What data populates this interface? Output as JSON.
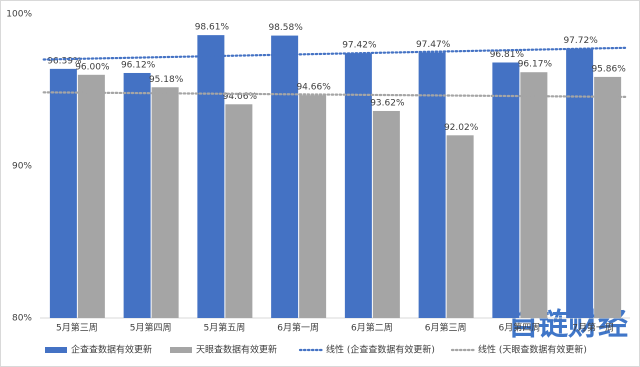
{
  "chart_data": {
    "type": "bar",
    "categories": [
      "5月第三周",
      "5月第四周",
      "5月第五周",
      "6月第一周",
      "6月第二周",
      "6月第三周",
      "6月第四周",
      "7月第一周"
    ],
    "series": [
      {
        "name": "企查查数据有效更新",
        "color": "#4472c4",
        "values": [
          96.39,
          96.12,
          98.61,
          98.58,
          97.42,
          97.47,
          96.81,
          97.72
        ],
        "value_labels": [
          "96.39%",
          "96.12%",
          "98.61%",
          "98.58%",
          "97.42%",
          "97.47%",
          "96.81%",
          "97.72%"
        ],
        "trendline": {
          "name": "线性 (企查查数据有效更新)",
          "color": "#4472c4"
        }
      },
      {
        "name": "天眼查数据有效更新",
        "color": "#a5a5a5",
        "values": [
          96.0,
          95.18,
          94.06,
          94.66,
          93.62,
          92.02,
          96.17,
          95.86
        ],
        "value_labels": [
          "96.00%",
          "95.18%",
          "94.06%",
          "94.66%",
          "93.62%",
          "92.02%",
          "96.17%",
          "95.86%"
        ],
        "trendline": {
          "name": "线性 (天眼查数据有效更新)",
          "color": "#a5a5a5"
        }
      }
    ],
    "ylim": [
      80,
      100
    ],
    "yticks": [
      {
        "value": 80,
        "label": "80%"
      },
      {
        "value": 90,
        "label": "90%"
      },
      {
        "value": 100,
        "label": "100%"
      }
    ],
    "grid": false
  },
  "watermark": "自链财经"
}
